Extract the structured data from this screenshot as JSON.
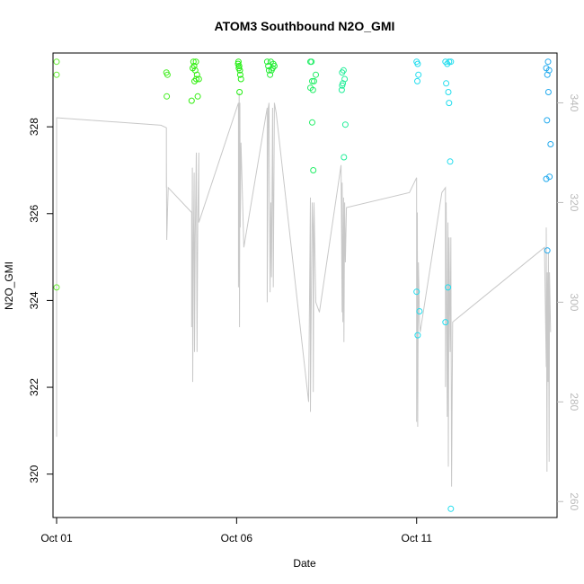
{
  "chart_data": {
    "type": "scatter",
    "title": "ATOM3 Southbound N2O_GMI",
    "xlabel": "Date",
    "ylabel": "N2O_GMI",
    "x_ticks": [
      {
        "label": "Oct 01",
        "day": 1
      },
      {
        "label": "Oct 06",
        "day": 6
      },
      {
        "label": "Oct 11",
        "day": 11
      }
    ],
    "xlim": [
      0.9,
      14.9
    ],
    "ylim": [
      319.0,
      329.7
    ],
    "yticks": [
      320,
      322,
      324,
      326,
      328
    ],
    "right_axis": {
      "color": "#bbbbbb",
      "ylim": [
        256.8,
        350.0
      ],
      "ticks": [
        260,
        280,
        300,
        320,
        340
      ]
    },
    "grid": false,
    "legend": "none",
    "series": [
      {
        "marker": "open-circle",
        "points": [
          [
            1.0,
            329.5,
            "#66ee33"
          ],
          [
            1.0,
            329.2,
            "#66ee33"
          ],
          [
            1.0,
            324.3,
            "#66ee33"
          ],
          [
            4.05,
            329.25,
            "#44ee22"
          ],
          [
            4.08,
            329.2,
            "#44ee22"
          ],
          [
            4.06,
            328.7,
            "#44ee22"
          ],
          [
            4.8,
            329.5,
            "#33ee11"
          ],
          [
            4.82,
            329.4,
            "#33ee11"
          ],
          [
            4.85,
            329.3,
            "#33ee11"
          ],
          [
            4.78,
            329.35,
            "#33ee11"
          ],
          [
            4.9,
            329.2,
            "#33ee11"
          ],
          [
            4.88,
            329.1,
            "#33ee11"
          ],
          [
            4.83,
            329.05,
            "#33ee11"
          ],
          [
            4.95,
            329.1,
            "#33ee11"
          ],
          [
            4.75,
            328.6,
            "#33ee11"
          ],
          [
            4.92,
            328.7,
            "#33ee11"
          ],
          [
            4.87,
            329.5,
            "#33ee11"
          ],
          [
            6.05,
            329.5,
            "#22ee11"
          ],
          [
            6.07,
            329.4,
            "#22ee11"
          ],
          [
            6.09,
            329.3,
            "#22ee11"
          ],
          [
            6.06,
            329.35,
            "#22ee11"
          ],
          [
            6.1,
            329.2,
            "#22ee11"
          ],
          [
            6.12,
            329.1,
            "#22ee11"
          ],
          [
            6.08,
            328.8,
            "#22ee11"
          ],
          [
            6.04,
            329.45,
            "#22ee11"
          ],
          [
            6.85,
            329.5,
            "#22ee33"
          ],
          [
            6.88,
            329.4,
            "#22ee33"
          ],
          [
            6.9,
            329.3,
            "#22ee33"
          ],
          [
            6.95,
            329.5,
            "#22ee33"
          ],
          [
            7.0,
            329.35,
            "#22ee33"
          ],
          [
            7.02,
            329.45,
            "#22ee33"
          ],
          [
            6.93,
            329.2,
            "#22ee33"
          ],
          [
            7.05,
            329.4,
            "#22ee33"
          ],
          [
            6.97,
            329.3,
            "#22ee33"
          ],
          [
            8.05,
            329.5,
            "#22ee66"
          ],
          [
            8.08,
            329.5,
            "#22ee66"
          ],
          [
            8.1,
            329.05,
            "#22ee66"
          ],
          [
            8.05,
            328.9,
            "#22ee66"
          ],
          [
            8.12,
            328.85,
            "#22ee66"
          ],
          [
            8.15,
            329.05,
            "#22ee66"
          ],
          [
            8.2,
            329.2,
            "#22ee66"
          ],
          [
            8.1,
            328.1,
            "#22ee66"
          ],
          [
            8.13,
            327.0,
            "#22ee66"
          ],
          [
            8.93,
            329.25,
            "#22ee99"
          ],
          [
            8.97,
            329.3,
            "#22ee99"
          ],
          [
            8.95,
            329.0,
            "#22ee99"
          ],
          [
            8.93,
            328.95,
            "#22ee99"
          ],
          [
            8.92,
            328.85,
            "#22ee99"
          ],
          [
            9.0,
            329.1,
            "#22ee99"
          ],
          [
            9.02,
            328.05,
            "#22ee99"
          ],
          [
            8.98,
            327.3,
            "#22ee99"
          ],
          [
            11.0,
            329.5,
            "#22ddee"
          ],
          [
            11.03,
            329.45,
            "#22ddee"
          ],
          [
            11.05,
            329.2,
            "#22ddee"
          ],
          [
            11.02,
            329.05,
            "#22ddee"
          ],
          [
            11.0,
            324.2,
            "#22ddee"
          ],
          [
            11.08,
            323.75,
            "#22ddee"
          ],
          [
            11.03,
            323.2,
            "#22ddee"
          ],
          [
            11.8,
            329.5,
            "#22ddee"
          ],
          [
            11.85,
            329.45,
            "#22ddee"
          ],
          [
            11.9,
            329.5,
            "#22ddee"
          ],
          [
            11.95,
            329.5,
            "#22ddee"
          ],
          [
            11.82,
            329.0,
            "#22ddee"
          ],
          [
            11.88,
            328.8,
            "#22ddee"
          ],
          [
            11.9,
            328.55,
            "#22ddee"
          ],
          [
            11.93,
            327.2,
            "#22ddee"
          ],
          [
            11.87,
            324.3,
            "#22ddee"
          ],
          [
            11.8,
            323.5,
            "#22ddee"
          ],
          [
            11.95,
            319.2,
            "#22ddee"
          ],
          [
            14.6,
            329.35,
            "#22aaee"
          ],
          [
            14.63,
            329.2,
            "#22aaee"
          ],
          [
            14.68,
            329.3,
            "#22aaee"
          ],
          [
            14.65,
            329.5,
            "#22aaee"
          ],
          [
            14.66,
            328.8,
            "#22aaee"
          ],
          [
            14.62,
            328.15,
            "#22aaee"
          ],
          [
            14.72,
            327.6,
            "#22aaee"
          ],
          [
            14.69,
            326.85,
            "#22aaee"
          ],
          [
            14.6,
            326.8,
            "#22aaee"
          ],
          [
            14.63,
            325.15,
            "#22aaee"
          ]
        ]
      },
      {
        "marker": "line",
        "color": "#c8c8c8",
        "axis": "right",
        "x": [
          1.0,
          1.0,
          1.02,
          3.9,
          4.05,
          4.05,
          4.05,
          4.06,
          4.08,
          4.1,
          4.75,
          4.75,
          4.77,
          4.78,
          4.8,
          4.82,
          4.83,
          4.85,
          4.88,
          4.9,
          4.92,
          4.95,
          4.95,
          6.05,
          6.05,
          6.07,
          6.08,
          6.09,
          6.1,
          6.12,
          6.2,
          6.85,
          6.85,
          6.88,
          6.9,
          6.93,
          6.95,
          6.97,
          7.0,
          7.02,
          7.05,
          7.1,
          8.0,
          8.05,
          8.05,
          8.08,
          8.1,
          8.12,
          8.13,
          8.15,
          8.2,
          8.3,
          8.9,
          8.93,
          8.93,
          8.95,
          8.97,
          8.98,
          9.0,
          9.02,
          9.05,
          10.8,
          11.0,
          11.0,
          11.02,
          11.03,
          11.05,
          11.08,
          11.1,
          11.7,
          11.8,
          11.8,
          11.82,
          11.85,
          11.87,
          11.88,
          11.9,
          11.93,
          11.95,
          11.97,
          12.0,
          14.55,
          14.6,
          14.6,
          14.62,
          14.63,
          14.65,
          14.66,
          14.68,
          14.69,
          14.72
        ],
        "y": [
          273.0,
          337.0,
          337.0,
          335.5,
          335.0,
          323.0,
          329.0,
          312.5,
          318.0,
          323.0,
          318.0,
          295.0,
          327.0,
          284.0,
          312.0,
          326.0,
          290.0,
          313.0,
          330.0,
          290.0,
          316.0,
          330.0,
          316.0,
          340.0,
          303.0,
          342.0,
          295.0,
          340.0,
          315.0,
          332.0,
          311.0,
          339.0,
          300.0,
          339.0,
          340.0,
          302.0,
          320.0,
          305.0,
          339.0,
          303.0,
          340.0,
          338.0,
          280.0,
          321.0,
          278.0,
          305.0,
          320.0,
          315.0,
          282.0,
          320.0,
          300.0,
          298.0,
          327.5,
          298.0,
          324.0,
          296.0,
          321.0,
          292.0,
          320.0,
          308.0,
          319.0,
          322.0,
          325.0,
          276.0,
          318.0,
          275.0,
          308.0,
          296.0,
          294.0,
          322.0,
          323.0,
          283.0,
          320.0,
          277.0,
          316.0,
          267.0,
          313.0,
          290.0,
          313.0,
          263.0,
          296.0,
          311.0,
          287.0,
          315.0,
          266.0,
          306.0,
          284.0,
          310.0,
          268.0,
          306.0,
          294.0
        ]
      }
    ]
  }
}
